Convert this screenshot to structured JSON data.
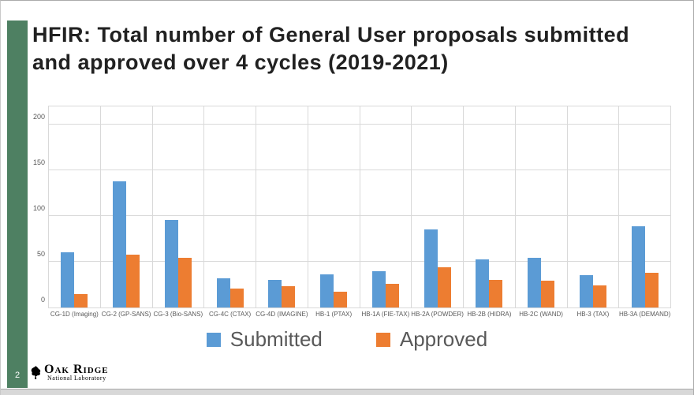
{
  "window": {
    "page_number": "2"
  },
  "slide": {
    "title": "HFIR: Total number of General User proposals submitted and approved over 4 cycles (2019-2021)"
  },
  "logo": {
    "org": "Oak Ridge",
    "sub": "National Laboratory"
  },
  "colors": {
    "submitted_blue": "#5B9BD5",
    "approved_orange": "#ED7D31",
    "accent_green": "#4E8062",
    "axis_text": "#595959",
    "gridline": "#D9D9D9"
  },
  "chart_data": {
    "type": "bar",
    "title": "",
    "xlabel": "",
    "ylabel": "",
    "grid": true,
    "legend_position": "bottom",
    "ylim": [
      0,
      220
    ],
    "yticks": [
      0,
      50,
      100,
      150,
      200
    ],
    "categories": [
      "CG-1D (Imaging)",
      "CG-2 (GP-SANS)",
      "CG-3 (Bio-SANS)",
      "CG-4C (CTAX)",
      "CG-4D (IMAGINE)",
      "HB-1 (PTAX)",
      "HB-1A (FIE-TAX)",
      "HB-2A (POWDER)",
      "HB-2B (HIDRA)",
      "HB-2C (WAND)",
      "HB-3 (TAX)",
      "HB-3A (DEMAND)"
    ],
    "series": [
      {
        "name": "Submitted",
        "color": "#5B9BD5",
        "values": [
          60,
          138,
          96,
          32,
          30,
          36,
          40,
          85,
          53,
          54,
          35,
          89
        ]
      },
      {
        "name": "Approved",
        "color": "#ED7D31",
        "values": [
          15,
          58,
          54,
          21,
          23,
          17,
          26,
          44,
          30,
          29,
          24,
          38
        ]
      }
    ]
  }
}
